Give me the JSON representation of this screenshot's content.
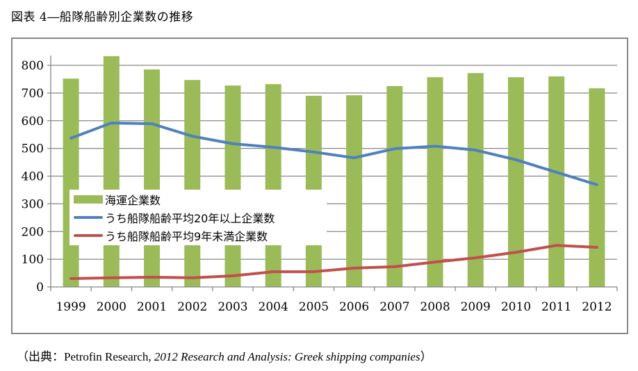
{
  "title": "図表 4―船隊船齢別企業数の推移",
  "source": {
    "prefix": "（出典：Petrofin Research, ",
    "italic": "2012 Research and Analysis: Greek shipping companies",
    "suffix": "）"
  },
  "colors": {
    "bar": "#9bbb59",
    "line_over20": "#4f81bd",
    "line_under9": "#c0504d",
    "grid": "#868686"
  },
  "chart_data": {
    "type": "bar",
    "title": "図表 4―船隊船齢別企業数の推移",
    "xlabel": "",
    "ylabel": "",
    "ylim": [
      0,
      800
    ],
    "yticks": [
      0,
      100,
      200,
      300,
      400,
      500,
      600,
      700,
      800
    ],
    "grid": true,
    "legend_position": "center-left",
    "categories": [
      "1999",
      "2000",
      "2001",
      "2002",
      "2003",
      "2004",
      "2005",
      "2006",
      "2007",
      "2008",
      "2009",
      "2010",
      "2011",
      "2012"
    ],
    "series": [
      {
        "name": "海運企業数",
        "type": "bar",
        "values": [
          752,
          833,
          785,
          747,
          727,
          732,
          690,
          692,
          725,
          757,
          772,
          757,
          760,
          717
        ]
      },
      {
        "name": "うち船隊船齢平均20年以上企業数",
        "type": "line",
        "values": [
          537,
          592,
          589,
          544,
          517,
          504,
          487,
          466,
          499,
          508,
          494,
          459,
          414,
          369
        ]
      },
      {
        "name": "うち船隊船齢平均9年未満企業数",
        "type": "line",
        "values": [
          30,
          33,
          35,
          33,
          40,
          55,
          55,
          68,
          73,
          90,
          105,
          125,
          150,
          143
        ]
      }
    ]
  }
}
